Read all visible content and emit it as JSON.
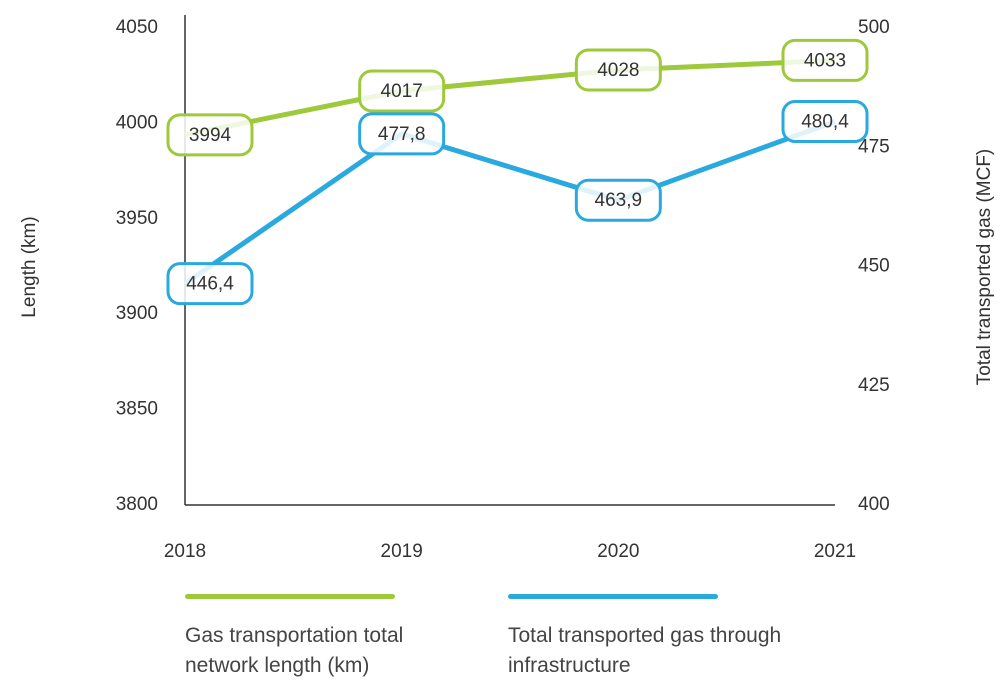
{
  "chart_data": {
    "type": "line",
    "y_label": "Length (km)",
    "y2_label": "Total transported gas (MCF)",
    "categories": [
      "2018",
      "2019",
      "2020",
      "2021"
    ],
    "series": [
      {
        "name": "Gas transportation total network length (km)",
        "color": "#9dc93a",
        "values": [
          3994,
          4017,
          4028,
          4033
        ]
      },
      {
        "name": "Total transported gas through infrastructure",
        "color": "#2aa9df",
        "axis": "y2",
        "values": [
          446.4,
          477.8,
          463.9,
          480.4
        ],
        "value_labels": [
          "446,4",
          "477,8",
          "463,9",
          "480,4"
        ]
      }
    ],
    "ylim": [
      3800,
      4050
    ],
    "yticks": [
      3800,
      3850,
      3900,
      3950,
      4000,
      4050
    ],
    "y2lim": [
      400,
      500
    ],
    "y2ticks": [
      400,
      425,
      450,
      475,
      500
    ]
  }
}
